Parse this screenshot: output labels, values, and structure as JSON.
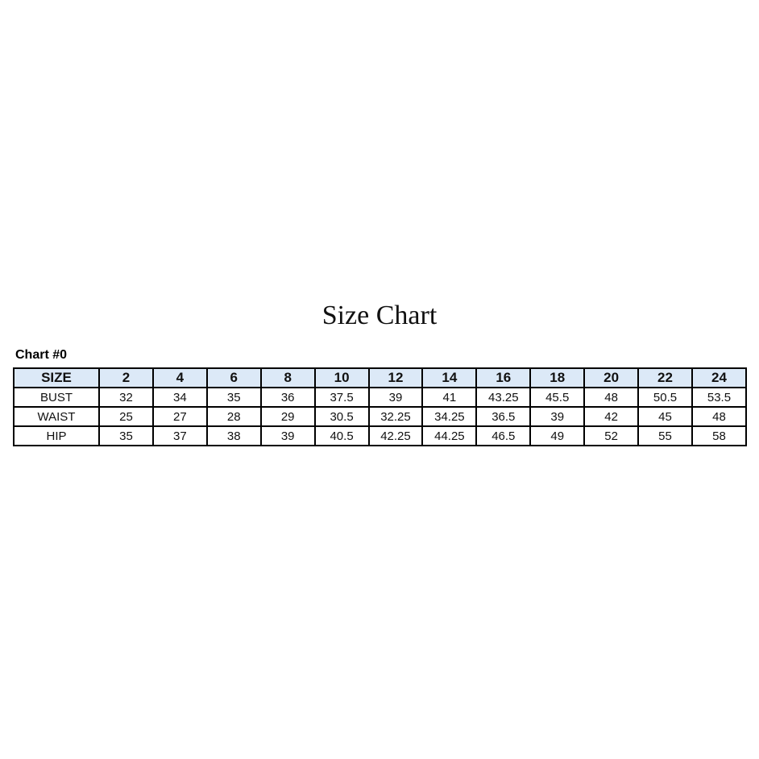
{
  "title": "Size Chart",
  "subtitle": "Chart #0",
  "table": {
    "header_label": "SIZE",
    "sizes": [
      "2",
      "4",
      "6",
      "8",
      "10",
      "12",
      "14",
      "16",
      "18",
      "20",
      "22",
      "24"
    ],
    "rows": [
      {
        "label": "BUST",
        "values": [
          "32",
          "34",
          "35",
          "36",
          "37.5",
          "39",
          "41",
          "43.25",
          "45.5",
          "48",
          "50.5",
          "53.5"
        ]
      },
      {
        "label": "WAIST",
        "values": [
          "25",
          "27",
          "28",
          "29",
          "30.5",
          "32.25",
          "34.25",
          "36.5",
          "39",
          "42",
          "45",
          "48"
        ]
      },
      {
        "label": "HIP",
        "values": [
          "35",
          "37",
          "38",
          "39",
          "40.5",
          "42.25",
          "44.25",
          "46.5",
          "49",
          "52",
          "55",
          "58"
        ]
      }
    ],
    "header_bg": "#dce9f7"
  }
}
